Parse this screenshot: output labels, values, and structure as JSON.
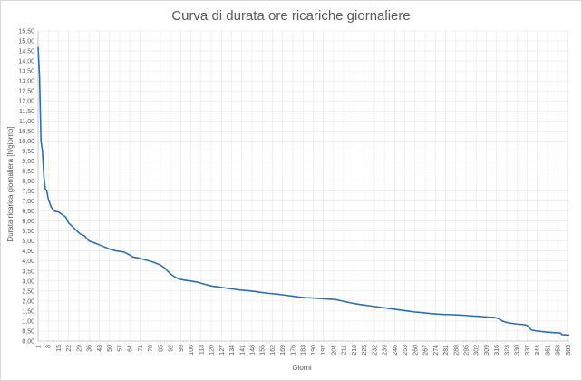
{
  "chart_data": {
    "type": "line",
    "title": "Curva di durata ore ricariche giornaliere",
    "xlabel": "Giorni",
    "ylabel": "Durata ricarica giornaliera  [h/giorno]",
    "xlim": [
      1,
      366
    ],
    "ylim": [
      0,
      15.5
    ],
    "y_ticks": [
      "0,00",
      "0,50",
      "1,00",
      "1,50",
      "2,00",
      "2,50",
      "3,00",
      "3,50",
      "4,00",
      "4,50",
      "5,00",
      "5,50",
      "6,00",
      "6,50",
      "7,00",
      "7,50",
      "8,00",
      "8,50",
      "9,00",
      "9,50",
      "10,00",
      "10,50",
      "11,00",
      "11,50",
      "12,00",
      "12,50",
      "13,00",
      "13,50",
      "14,00",
      "14,50",
      "15,00",
      "15,50"
    ],
    "x_ticks": [
      "1",
      "8",
      "15",
      "22",
      "29",
      "36",
      "43",
      "50",
      "57",
      "64",
      "71",
      "78",
      "85",
      "92",
      "99",
      "106",
      "113",
      "120",
      "127",
      "134",
      "141",
      "148",
      "155",
      "162",
      "169",
      "176",
      "183",
      "190",
      "197",
      "204",
      "211",
      "218",
      "225",
      "232",
      "239",
      "246",
      "253",
      "260",
      "267",
      "274",
      "281",
      "288",
      "295",
      "302",
      "309",
      "316",
      "323",
      "330",
      "337",
      "344",
      "351",
      "358",
      "365"
    ],
    "grid": true,
    "legend": "none",
    "line_color": "#2e6fb4",
    "series": [
      {
        "x": [
          1,
          2,
          3,
          4,
          5,
          6,
          7,
          8,
          9,
          10,
          12,
          15,
          18,
          20,
          22,
          25,
          27,
          30,
          33,
          36,
          40,
          45,
          50,
          55,
          60,
          64,
          66,
          70,
          75,
          80,
          85,
          88,
          90,
          92,
          95,
          98,
          101,
          106,
          110,
          115,
          120,
          125,
          130,
          135,
          140,
          145,
          150,
          155,
          160,
          165,
          170,
          175,
          180,
          185,
          190,
          195,
          200,
          205,
          210,
          215,
          220,
          225,
          230,
          235,
          240,
          245,
          250,
          255,
          260,
          265,
          270,
          275,
          280,
          285,
          290,
          295,
          300,
          305,
          310,
          315,
          318,
          320,
          322,
          325,
          330,
          335,
          337,
          340,
          344,
          350,
          355,
          360,
          361,
          366
        ],
        "y": [
          14.7,
          13.2,
          10.0,
          9.5,
          8.2,
          7.6,
          7.5,
          7.1,
          6.9,
          6.7,
          6.5,
          6.45,
          6.3,
          6.2,
          5.9,
          5.7,
          5.55,
          5.35,
          5.25,
          5.0,
          4.9,
          4.75,
          4.6,
          4.5,
          4.45,
          4.3,
          4.2,
          4.15,
          4.05,
          3.95,
          3.8,
          3.65,
          3.5,
          3.35,
          3.2,
          3.1,
          3.05,
          3.0,
          2.95,
          2.85,
          2.75,
          2.7,
          2.65,
          2.6,
          2.55,
          2.52,
          2.48,
          2.42,
          2.38,
          2.35,
          2.3,
          2.25,
          2.2,
          2.17,
          2.15,
          2.12,
          2.1,
          2.08,
          2.0,
          1.92,
          1.85,
          1.8,
          1.75,
          1.7,
          1.65,
          1.6,
          1.55,
          1.5,
          1.45,
          1.42,
          1.38,
          1.35,
          1.33,
          1.32,
          1.3,
          1.28,
          1.25,
          1.23,
          1.2,
          1.18,
          1.1,
          1.0,
          0.95,
          0.9,
          0.85,
          0.82,
          0.78,
          0.55,
          0.5,
          0.45,
          0.42,
          0.4,
          0.32,
          0.3
        ]
      }
    ]
  }
}
